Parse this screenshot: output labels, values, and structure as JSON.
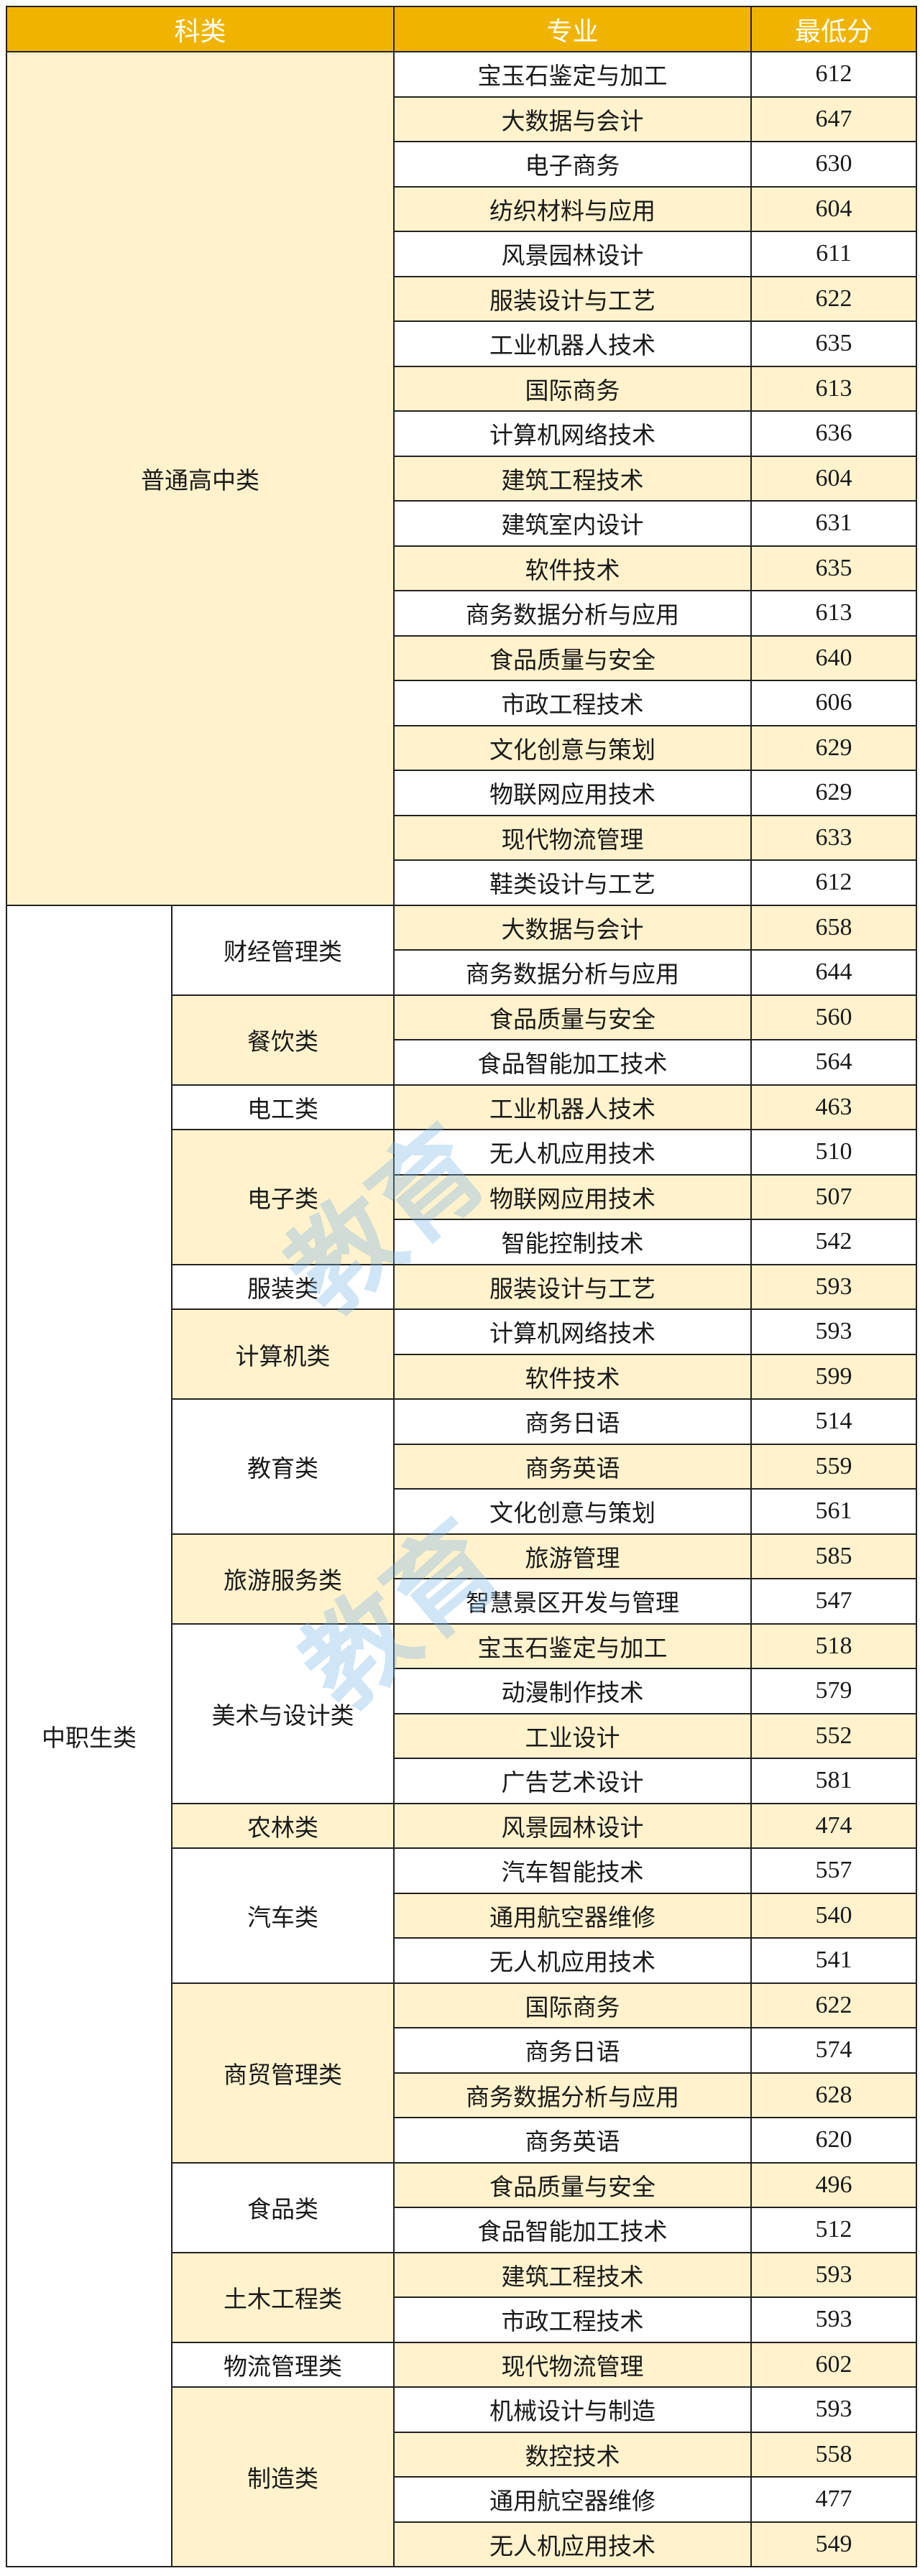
{
  "header": {
    "category": "科类",
    "major": "专业",
    "min_score": "最低分"
  },
  "colors": {
    "header_bg": "#F0B400",
    "stripe": "#FFF2CC"
  },
  "watermark": "教育",
  "groups": [
    {
      "name": "普通高中类",
      "subgroups": [
        {
          "name": "",
          "rows": [
            {
              "major": "宝玉石鉴定与加工",
              "score": "612"
            },
            {
              "major": "大数据与会计",
              "score": "647"
            },
            {
              "major": "电子商务",
              "score": "630"
            },
            {
              "major": "纺织材料与应用",
              "score": "604"
            },
            {
              "major": "风景园林设计",
              "score": "611"
            },
            {
              "major": "服装设计与工艺",
              "score": "622"
            },
            {
              "major": "工业机器人技术",
              "score": "635"
            },
            {
              "major": "国际商务",
              "score": "613"
            },
            {
              "major": "计算机网络技术",
              "score": "636"
            },
            {
              "major": "建筑工程技术",
              "score": "604"
            },
            {
              "major": "建筑室内设计",
              "score": "631"
            },
            {
              "major": "软件技术",
              "score": "635"
            },
            {
              "major": "商务数据分析与应用",
              "score": "613"
            },
            {
              "major": "食品质量与安全",
              "score": "640"
            },
            {
              "major": "市政工程技术",
              "score": "606"
            },
            {
              "major": "文化创意与策划",
              "score": "629"
            },
            {
              "major": "物联网应用技术",
              "score": "629"
            },
            {
              "major": "现代物流管理",
              "score": "633"
            },
            {
              "major": "鞋类设计与工艺",
              "score": "612"
            }
          ]
        }
      ]
    },
    {
      "name": "中职生类",
      "subgroups": [
        {
          "name": "财经管理类",
          "rows": [
            {
              "major": "大数据与会计",
              "score": "658"
            },
            {
              "major": "商务数据分析与应用",
              "score": "644"
            }
          ]
        },
        {
          "name": "餐饮类",
          "rows": [
            {
              "major": "食品质量与安全",
              "score": "560"
            },
            {
              "major": "食品智能加工技术",
              "score": "564"
            }
          ]
        },
        {
          "name": "电工类",
          "rows": [
            {
              "major": "工业机器人技术",
              "score": "463"
            }
          ]
        },
        {
          "name": "电子类",
          "rows": [
            {
              "major": "无人机应用技术",
              "score": "510"
            },
            {
              "major": "物联网应用技术",
              "score": "507"
            },
            {
              "major": "智能控制技术",
              "score": "542"
            }
          ]
        },
        {
          "name": "服装类",
          "rows": [
            {
              "major": "服装设计与工艺",
              "score": "593"
            }
          ]
        },
        {
          "name": "计算机类",
          "rows": [
            {
              "major": "计算机网络技术",
              "score": "593"
            },
            {
              "major": "软件技术",
              "score": "599"
            }
          ]
        },
        {
          "name": "教育类",
          "rows": [
            {
              "major": "商务日语",
              "score": "514"
            },
            {
              "major": "商务英语",
              "score": "559"
            },
            {
              "major": "文化创意与策划",
              "score": "561"
            }
          ]
        },
        {
          "name": "旅游服务类",
          "rows": [
            {
              "major": "旅游管理",
              "score": "585"
            },
            {
              "major": "智慧景区开发与管理",
              "score": "547"
            }
          ]
        },
        {
          "name": "美术与设计类",
          "rows": [
            {
              "major": "宝玉石鉴定与加工",
              "score": "518"
            },
            {
              "major": "动漫制作技术",
              "score": "579"
            },
            {
              "major": "工业设计",
              "score": "552"
            },
            {
              "major": "广告艺术设计",
              "score": "581"
            }
          ]
        },
        {
          "name": "农林类",
          "rows": [
            {
              "major": "风景园林设计",
              "score": "474"
            }
          ]
        },
        {
          "name": "汽车类",
          "rows": [
            {
              "major": "汽车智能技术",
              "score": "557"
            },
            {
              "major": "通用航空器维修",
              "score": "540"
            },
            {
              "major": "无人机应用技术",
              "score": "541"
            }
          ]
        },
        {
          "name": "商贸管理类",
          "rows": [
            {
              "major": "国际商务",
              "score": "622"
            },
            {
              "major": "商务日语",
              "score": "574"
            },
            {
              "major": "商务数据分析与应用",
              "score": "628"
            },
            {
              "major": "商务英语",
              "score": "620"
            }
          ]
        },
        {
          "name": "食品类",
          "rows": [
            {
              "major": "食品质量与安全",
              "score": "496"
            },
            {
              "major": "食品智能加工技术",
              "score": "512"
            }
          ]
        },
        {
          "name": "土木工程类",
          "rows": [
            {
              "major": "建筑工程技术",
              "score": "593"
            },
            {
              "major": "市政工程技术",
              "score": "593"
            }
          ]
        },
        {
          "name": "物流管理类",
          "rows": [
            {
              "major": "现代物流管理",
              "score": "602"
            }
          ]
        },
        {
          "name": "制造类",
          "rows": [
            {
              "major": "机械设计与制造",
              "score": "593"
            },
            {
              "major": "数控技术",
              "score": "558"
            },
            {
              "major": "通用航空器维修",
              "score": "477"
            },
            {
              "major": "无人机应用技术",
              "score": "549"
            }
          ]
        }
      ]
    }
  ]
}
